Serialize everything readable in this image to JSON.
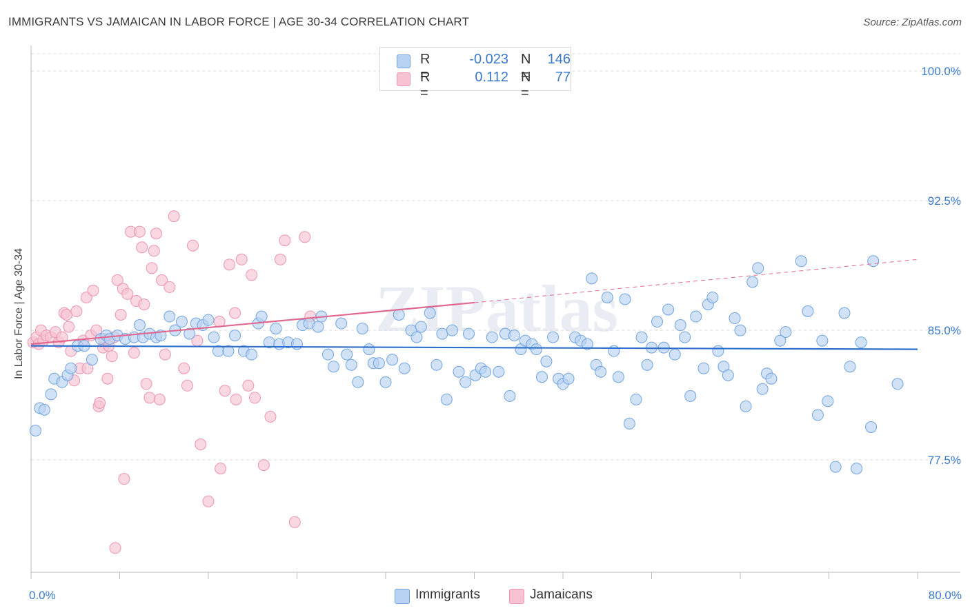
{
  "title": "IMMIGRANTS VS JAMAICAN IN LABOR FORCE | AGE 30-34 CORRELATION CHART",
  "source": "Source: ZipAtlas.com",
  "watermark": "ZIPatlas",
  "legend": {
    "rows": [
      {
        "r_label": "R =",
        "r_value": "-0.023",
        "n_label": "N =",
        "n_value": "146"
      },
      {
        "r_label": "R =",
        "r_value": "0.112",
        "n_label": "N =",
        "n_value": "77"
      }
    ]
  },
  "bottom_legend": [
    "Immigrants",
    "Jamaicans"
  ],
  "colors": {
    "immigrants_fill": "#b8d3f2",
    "immigrants_stroke": "#6fa3e0",
    "immigrants_line": "#2e6fc9",
    "jamaicans_fill": "#f7c3d3",
    "jamaicans_stroke": "#eb94b1",
    "jamaicans_line": "#e0688f",
    "axis_text": "#3a78c8",
    "grid": "#dddddd"
  },
  "chart_data": {
    "type": "scatter",
    "title": "IMMIGRANTS VS JAMAICAN IN LABOR FORCE | AGE 30-34 CORRELATION CHART",
    "xlabel": "",
    "ylabel": "In Labor Force | Age 30-34",
    "xlim": [
      0,
      80
    ],
    "ylim": [
      71,
      101
    ],
    "x_tick_labels": [
      "0.0%",
      "80.0%"
    ],
    "y_ticks": [
      77.5,
      85.0,
      92.5,
      100.0
    ],
    "y_tick_labels": [
      "77.5%",
      "85.0%",
      "92.5%",
      "100.0%"
    ],
    "series": [
      {
        "name": "Immigrants",
        "R": -0.023,
        "N": 146,
        "trend": {
          "x0": 0,
          "y0": 84.1,
          "x1": 80,
          "y1": 83.9
        },
        "points": [
          [
            0.4,
            79.2
          ],
          [
            0.8,
            80.5
          ],
          [
            1.2,
            80.4
          ],
          [
            1.8,
            81.3
          ],
          [
            2.1,
            82.2
          ],
          [
            2.8,
            82.0
          ],
          [
            3.3,
            82.4
          ],
          [
            3.6,
            82.8
          ],
          [
            4.2,
            84.1
          ],
          [
            4.8,
            84.1
          ],
          [
            5.5,
            83.3
          ],
          [
            6.3,
            84.5
          ],
          [
            6.8,
            84.7
          ],
          [
            7.1,
            84.5
          ],
          [
            7.8,
            84.7
          ],
          [
            8.5,
            84.5
          ],
          [
            9.3,
            84.6
          ],
          [
            9.8,
            85.3
          ],
          [
            10.1,
            84.6
          ],
          [
            10.7,
            84.8
          ],
          [
            11.3,
            84.6
          ],
          [
            11.7,
            84.7
          ],
          [
            12.5,
            85.8
          ],
          [
            13.0,
            85.0
          ],
          [
            13.6,
            85.5
          ],
          [
            14.3,
            84.8
          ],
          [
            14.9,
            85.4
          ],
          [
            15.5,
            85.3
          ],
          [
            16.0,
            85.6
          ],
          [
            16.5,
            84.6
          ],
          [
            16.9,
            83.8
          ],
          [
            17.8,
            83.8
          ],
          [
            18.4,
            84.7
          ],
          [
            19.2,
            83.8
          ],
          [
            19.9,
            83.6
          ],
          [
            20.5,
            85.4
          ],
          [
            20.8,
            85.8
          ],
          [
            21.5,
            84.3
          ],
          [
            22.1,
            85.1
          ],
          [
            22.4,
            84.2
          ],
          [
            23.2,
            84.3
          ],
          [
            24.0,
            84.2
          ],
          [
            24.5,
            85.3
          ],
          [
            25.1,
            85.4
          ],
          [
            25.9,
            85.2
          ],
          [
            26.2,
            85.8
          ],
          [
            26.8,
            83.6
          ],
          [
            27.3,
            82.9
          ],
          [
            28.0,
            85.4
          ],
          [
            28.5,
            83.6
          ],
          [
            28.9,
            83.0
          ],
          [
            29.5,
            82.0
          ],
          [
            29.9,
            85.1
          ],
          [
            30.5,
            83.9
          ],
          [
            30.9,
            83.1
          ],
          [
            31.4,
            83.1
          ],
          [
            32.0,
            82.0
          ],
          [
            32.6,
            83.3
          ],
          [
            33.2,
            85.9
          ],
          [
            33.7,
            82.8
          ],
          [
            34.3,
            85.0
          ],
          [
            34.8,
            84.6
          ],
          [
            35.2,
            85.2
          ],
          [
            36.0,
            86.0
          ],
          [
            36.6,
            83.0
          ],
          [
            37.1,
            84.8
          ],
          [
            37.5,
            81.0
          ],
          [
            38.0,
            85.0
          ],
          [
            38.6,
            82.6
          ],
          [
            39.2,
            82.0
          ],
          [
            39.5,
            84.8
          ],
          [
            40.1,
            82.4
          ],
          [
            40.6,
            82.8
          ],
          [
            41.0,
            82.6
          ],
          [
            41.6,
            84.6
          ],
          [
            42.2,
            82.6
          ],
          [
            42.8,
            84.8
          ],
          [
            43.2,
            81.2
          ],
          [
            43.6,
            84.7
          ],
          [
            44.2,
            83.9
          ],
          [
            44.6,
            84.4
          ],
          [
            45.2,
            84.2
          ],
          [
            45.6,
            83.9
          ],
          [
            46.1,
            82.3
          ],
          [
            46.5,
            83.2
          ],
          [
            47.1,
            84.6
          ],
          [
            47.6,
            82.2
          ],
          [
            48.0,
            81.9
          ],
          [
            48.5,
            82.2
          ],
          [
            49.1,
            84.6
          ],
          [
            49.6,
            84.4
          ],
          [
            50.2,
            84.2
          ],
          [
            50.6,
            88.0
          ],
          [
            51.0,
            83.0
          ],
          [
            51.4,
            82.6
          ],
          [
            52.0,
            86.9
          ],
          [
            52.6,
            83.8
          ],
          [
            53.0,
            82.3
          ],
          [
            53.6,
            86.8
          ],
          [
            54.0,
            79.6
          ],
          [
            54.6,
            81.0
          ],
          [
            55.1,
            84.6
          ],
          [
            55.6,
            83.0
          ],
          [
            56.0,
            84.0
          ],
          [
            56.5,
            85.5
          ],
          [
            57.1,
            84.0
          ],
          [
            57.5,
            86.2
          ],
          [
            58.1,
            83.6
          ],
          [
            58.6,
            85.3
          ],
          [
            59.0,
            84.6
          ],
          [
            59.5,
            81.2
          ],
          [
            60.0,
            85.8
          ],
          [
            60.7,
            82.8
          ],
          [
            61.1,
            86.5
          ],
          [
            61.5,
            86.9
          ],
          [
            62.0,
            83.8
          ],
          [
            62.5,
            82.9
          ],
          [
            62.9,
            82.4
          ],
          [
            63.5,
            85.7
          ],
          [
            64.0,
            85.0
          ],
          [
            64.5,
            80.6
          ],
          [
            65.1,
            87.8
          ],
          [
            65.6,
            88.6
          ],
          [
            66.0,
            81.6
          ],
          [
            66.4,
            82.5
          ],
          [
            66.8,
            82.2
          ],
          [
            67.6,
            84.4
          ],
          [
            68.1,
            84.9
          ],
          [
            69.5,
            89.0
          ],
          [
            70.1,
            86.1
          ],
          [
            71.0,
            80.1
          ],
          [
            71.4,
            84.4
          ],
          [
            71.9,
            80.9
          ],
          [
            72.6,
            77.1
          ],
          [
            73.4,
            86.0
          ],
          [
            73.9,
            82.9
          ],
          [
            74.5,
            77.0
          ],
          [
            74.9,
            84.3
          ],
          [
            75.8,
            79.4
          ],
          [
            76.0,
            89.0
          ],
          [
            78.2,
            81.9
          ]
        ]
      },
      {
        "name": "Jamaicans",
        "R": 0.112,
        "N": 77,
        "trend": {
          "x0": 0,
          "y0": 84.2,
          "x1": 40,
          "y1": 86.6
        },
        "trend_extension": {
          "x0": 40,
          "y0": 86.6,
          "x1": 80,
          "y1": 89.1
        },
        "points": [
          [
            0.2,
            84.3
          ],
          [
            0.5,
            84.6
          ],
          [
            0.7,
            84.2
          ],
          [
            0.9,
            85.0
          ],
          [
            1.1,
            84.4
          ],
          [
            1.4,
            84.7
          ],
          [
            1.8,
            84.6
          ],
          [
            2.2,
            84.9
          ],
          [
            2.5,
            84.3
          ],
          [
            2.8,
            84.6
          ],
          [
            3.0,
            86.0
          ],
          [
            3.2,
            85.9
          ],
          [
            3.4,
            85.2
          ],
          [
            3.6,
            83.8
          ],
          [
            3.9,
            82.1
          ],
          [
            4.1,
            86.1
          ],
          [
            4.4,
            82.8
          ],
          [
            4.7,
            84.4
          ],
          [
            5.0,
            86.9
          ],
          [
            5.1,
            82.8
          ],
          [
            5.4,
            84.7
          ],
          [
            5.6,
            87.3
          ],
          [
            5.9,
            85.0
          ],
          [
            6.1,
            80.6
          ],
          [
            6.2,
            80.8
          ],
          [
            6.5,
            84.0
          ],
          [
            6.6,
            84.5
          ],
          [
            6.9,
            82.2
          ],
          [
            7.0,
            84.1
          ],
          [
            7.3,
            83.5
          ],
          [
            7.5,
            84.6
          ],
          [
            7.8,
            87.9
          ],
          [
            8.1,
            85.9
          ],
          [
            8.3,
            87.4
          ],
          [
            8.4,
            76.4
          ],
          [
            8.7,
            87.1
          ],
          [
            9.0,
            90.7
          ],
          [
            9.3,
            83.7
          ],
          [
            9.5,
            86.7
          ],
          [
            9.8,
            90.7
          ],
          [
            10.0,
            89.8
          ],
          [
            10.2,
            86.5
          ],
          [
            10.4,
            81.9
          ],
          [
            10.7,
            81.1
          ],
          [
            10.9,
            88.6
          ],
          [
            11.1,
            89.6
          ],
          [
            11.3,
            90.6
          ],
          [
            11.6,
            81.0
          ],
          [
            11.8,
            87.9
          ],
          [
            12.1,
            83.6
          ],
          [
            12.5,
            87.5
          ],
          [
            12.9,
            91.6
          ],
          [
            13.8,
            82.8
          ],
          [
            14.1,
            81.8
          ],
          [
            14.6,
            89.9
          ],
          [
            15.3,
            78.4
          ],
          [
            16.0,
            75.1
          ],
          [
            17.0,
            85.5
          ],
          [
            17.5,
            81.5
          ],
          [
            17.9,
            88.8
          ],
          [
            18.5,
            81.0
          ],
          [
            19.0,
            89.1
          ],
          [
            19.6,
            81.8
          ],
          [
            19.9,
            88.2
          ],
          [
            20.2,
            81.1
          ],
          [
            21.0,
            77.2
          ],
          [
            21.6,
            80.0
          ],
          [
            22.5,
            89.1
          ],
          [
            22.9,
            90.2
          ],
          [
            23.8,
            73.9
          ],
          [
            24.7,
            90.4
          ],
          [
            25.2,
            85.8
          ],
          [
            18.4,
            86.0
          ],
          [
            17.1,
            77.0
          ],
          [
            15.0,
            84.4
          ],
          [
            7.6,
            72.4
          ]
        ]
      }
    ]
  }
}
